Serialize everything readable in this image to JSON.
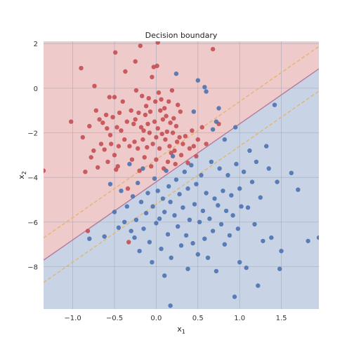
{
  "chart_data": {
    "type": "scatter",
    "title": "Decision boundary",
    "xlabel": "x",
    "xlabel_sub": "1",
    "ylabel": "x",
    "ylabel_sub": "2",
    "xlim": [
      -1.35,
      1.95
    ],
    "ylim": [
      -9.9,
      2.1
    ],
    "grid": true,
    "x_ticks": [
      -1.0,
      -0.5,
      0.0,
      0.5,
      1.0,
      1.5
    ],
    "x_tick_labels": [
      "−1.0",
      "−0.5",
      "0.0",
      "0.5",
      "1.0",
      "1.5"
    ],
    "y_ticks": [
      2,
      0,
      -2,
      -4,
      -6,
      -8
    ],
    "y_tick_labels": [
      "2",
      "0",
      "−2",
      "−4",
      "−6",
      "−8"
    ],
    "boundary": {
      "slope": 2.6,
      "intercept": -4.2,
      "margin": 1.0
    },
    "region_colors": {
      "upper": "#efcacb",
      "lower": "#c8d4e6"
    },
    "boundary_color": "#b47a9b",
    "margin_color": "#e3b56c",
    "series": [
      {
        "color": "#c44e52",
        "points": [
          [
            -1.35,
            -3.7
          ],
          [
            -1.02,
            -1.5
          ],
          [
            -0.9,
            0.9
          ],
          [
            -0.88,
            -2.2
          ],
          [
            -0.85,
            -3.75
          ],
          [
            -0.82,
            -6.4
          ],
          [
            -0.8,
            -1.7
          ],
          [
            -0.78,
            -3.1
          ],
          [
            -0.75,
            -2.8
          ],
          [
            -0.74,
            0.1
          ],
          [
            -0.72,
            -1.0
          ],
          [
            -0.7,
            -3.55
          ],
          [
            -0.68,
            -1.4
          ],
          [
            -0.66,
            -2.5
          ],
          [
            -0.64,
            -1.55
          ],
          [
            -0.62,
            -2.75
          ],
          [
            -0.6,
            -1.2
          ],
          [
            -0.59,
            -1.8
          ],
          [
            -0.58,
            -3.3
          ],
          [
            -0.56,
            -0.4
          ],
          [
            -0.55,
            -2.1
          ],
          [
            -0.54,
            -2.5
          ],
          [
            -0.52,
            -1.3
          ],
          [
            -0.5,
            -3.0
          ],
          [
            -0.5,
            -0.4
          ],
          [
            -0.49,
            1.6
          ],
          [
            -0.48,
            -3.65
          ],
          [
            -0.47,
            -1.75
          ],
          [
            -0.46,
            -3.5
          ],
          [
            -0.45,
            -2.6
          ],
          [
            -0.44,
            -1.1
          ],
          [
            -0.42,
            -1.9
          ],
          [
            -0.4,
            -0.6
          ],
          [
            -0.38,
            -2.3
          ],
          [
            -0.37,
            0.75
          ],
          [
            -0.35,
            -1.5
          ],
          [
            -0.34,
            -4.5
          ],
          [
            -0.33,
            -6.9
          ],
          [
            -0.32,
            -2.6
          ],
          [
            -0.3,
            -1.0
          ],
          [
            -0.29,
            -3.2
          ],
          [
            -0.27,
            -1.6
          ],
          [
            -0.26,
            -2.4
          ],
          [
            -0.25,
            -1.4
          ],
          [
            -0.24,
            -0.1
          ],
          [
            -0.22,
            -2.7
          ],
          [
            -0.21,
            -1.1
          ],
          [
            -0.2,
            -3.7
          ],
          [
            -0.19,
            1.9
          ],
          [
            -0.18,
            -1.75
          ],
          [
            -0.17,
            -0.35
          ],
          [
            -0.16,
            -2.3
          ],
          [
            -0.15,
            -1.9
          ],
          [
            -0.14,
            -3.1
          ],
          [
            -0.13,
            -1.2
          ],
          [
            -0.12,
            -0.8
          ],
          [
            -0.11,
            -2.65
          ],
          [
            -0.1,
            -1.6
          ],
          [
            -0.09,
            -0.45
          ],
          [
            -0.08,
            -2.0
          ],
          [
            -0.07,
            -1.05
          ],
          [
            -0.06,
            -3.5
          ],
          [
            -0.05,
            0.5
          ],
          [
            -0.04,
            -2.5
          ],
          [
            -0.03,
            0.95
          ],
          [
            -0.02,
            -1.5
          ],
          [
            -0.01,
            -0.6
          ],
          [
            0.0,
            -2.2
          ],
          [
            0.0,
            -3.2
          ],
          [
            0.01,
            1.0
          ],
          [
            0.02,
            -1.8
          ],
          [
            0.03,
            -0.2
          ],
          [
            0.04,
            -2.7
          ],
          [
            0.05,
            -1.0
          ],
          [
            0.06,
            -0.5
          ],
          [
            0.07,
            -2.05
          ],
          [
            0.08,
            -1.4
          ],
          [
            0.09,
            -3.6
          ],
          [
            0.1,
            -0.9
          ],
          [
            0.11,
            -2.3
          ],
          [
            0.12,
            -1.25
          ],
          [
            0.13,
            -1.95
          ],
          [
            0.14,
            -3.3
          ],
          [
            0.15,
            -0.6
          ],
          [
            0.16,
            -2.6
          ],
          [
            0.17,
            -1.55
          ],
          [
            0.18,
            -2.9
          ],
          [
            0.19,
            -0.1
          ],
          [
            0.2,
            -2.0
          ],
          [
            0.21,
            -1.35
          ],
          [
            0.22,
            -2.8
          ],
          [
            0.23,
            -3.4
          ],
          [
            0.24,
            -1.7
          ],
          [
            0.25,
            -2.4
          ],
          [
            0.26,
            -0.75
          ],
          [
            0.28,
            -2.2
          ],
          [
            0.29,
            -1.05
          ],
          [
            0.3,
            -3.0
          ],
          [
            0.32,
            -2.5
          ],
          [
            0.35,
            -2.15
          ],
          [
            0.38,
            -3.35
          ],
          [
            0.4,
            -2.7
          ],
          [
            0.43,
            -1.9
          ],
          [
            0.45,
            -2.6
          ],
          [
            0.48,
            -3.05
          ],
          [
            0.5,
            -2.3
          ],
          [
            0.55,
            -1.75
          ],
          [
            0.6,
            -2.5
          ],
          [
            0.68,
            1.75
          ],
          [
            0.75,
            -1.6
          ],
          [
            0.02,
            2.05
          ],
          [
            -0.25,
            1.2
          ]
        ]
      },
      {
        "color": "#4c72b0",
        "points": [
          [
            -0.8,
            -6.75
          ],
          [
            -0.62,
            -6.65
          ],
          [
            -0.55,
            -4.3
          ],
          [
            -0.5,
            -5.55
          ],
          [
            -0.45,
            -6.25
          ],
          [
            -0.42,
            -4.6
          ],
          [
            -0.38,
            -6.0
          ],
          [
            -0.35,
            -5.3
          ],
          [
            -0.32,
            -3.4
          ],
          [
            -0.3,
            -6.4
          ],
          [
            -0.28,
            -4.85
          ],
          [
            -0.26,
            -6.7
          ],
          [
            -0.24,
            -5.9
          ],
          [
            -0.22,
            -4.25
          ],
          [
            -0.2,
            -7.3
          ],
          [
            -0.18,
            -5.1
          ],
          [
            -0.16,
            -3.6
          ],
          [
            -0.15,
            -6.3
          ],
          [
            -0.12,
            -5.6
          ],
          [
            -0.1,
            -4.7
          ],
          [
            -0.08,
            -6.9
          ],
          [
            -0.05,
            -7.8
          ],
          [
            -0.04,
            -5.3
          ],
          [
            -0.02,
            -4.05
          ],
          [
            0.0,
            -6.05
          ],
          [
            0.02,
            -4.6
          ],
          [
            0.04,
            -5.85
          ],
          [
            0.06,
            -7.2
          ],
          [
            0.08,
            -4.95
          ],
          [
            0.1,
            -5.55
          ],
          [
            0.1,
            -8.4
          ],
          [
            0.12,
            -3.7
          ],
          [
            0.14,
            -6.55
          ],
          [
            0.15,
            -4.4
          ],
          [
            0.17,
            -5.1
          ],
          [
            0.17,
            -9.75
          ],
          [
            0.18,
            -7.6
          ],
          [
            0.2,
            -3.05
          ],
          [
            0.22,
            -5.7
          ],
          [
            0.24,
            -4.1
          ],
          [
            0.26,
            -6.2
          ],
          [
            0.28,
            -4.75
          ],
          [
            0.3,
            -7.05
          ],
          [
            0.32,
            -5.35
          ],
          [
            0.34,
            -3.75
          ],
          [
            0.36,
            -6.6
          ],
          [
            0.38,
            -4.5
          ],
          [
            0.38,
            -8.1
          ],
          [
            0.4,
            -5.9
          ],
          [
            0.42,
            -3.45
          ],
          [
            0.44,
            -6.95
          ],
          [
            0.46,
            -5.2
          ],
          [
            0.48,
            -4.3
          ],
          [
            0.5,
            -7.45
          ],
          [
            0.52,
            -6.0
          ],
          [
            0.54,
            -3.9
          ],
          [
            0.56,
            -5.5
          ],
          [
            0.58,
            -6.75
          ],
          [
            0.6,
            -4.7
          ],
          [
            0.62,
            -7.6
          ],
          [
            0.64,
            -5.85
          ],
          [
            0.66,
            -3.3
          ],
          [
            0.68,
            -6.4
          ],
          [
            0.7,
            -4.95
          ],
          [
            0.72,
            -8.2
          ],
          [
            0.74,
            -5.25
          ],
          [
            0.76,
            -3.6
          ],
          [
            0.78,
            -6.1
          ],
          [
            0.8,
            -4.6
          ],
          [
            0.82,
            -7.0
          ],
          [
            0.84,
            -5.5
          ],
          [
            0.86,
            -3.9
          ],
          [
            0.88,
            -6.6
          ],
          [
            0.9,
            -4.8
          ],
          [
            0.92,
            -5.7
          ],
          [
            0.94,
            -9.35
          ],
          [
            0.96,
            -3.4
          ],
          [
            0.98,
            -6.3
          ],
          [
            1.0,
            -4.5
          ],
          [
            1.0,
            -7.8
          ],
          [
            1.02,
            -5.3
          ],
          [
            1.05,
            -3.75
          ],
          [
            1.08,
            -8.05
          ],
          [
            1.1,
            -5.35
          ],
          [
            1.12,
            -2.8
          ],
          [
            1.15,
            -4.2
          ],
          [
            1.18,
            -6.1
          ],
          [
            1.2,
            -3.3
          ],
          [
            1.22,
            -8.85
          ],
          [
            1.25,
            -4.9
          ],
          [
            1.28,
            -6.85
          ],
          [
            1.32,
            -2.6
          ],
          [
            1.35,
            -3.6
          ],
          [
            1.38,
            -6.7
          ],
          [
            1.42,
            -0.75
          ],
          [
            1.45,
            -4.2
          ],
          [
            1.48,
            -8.1
          ],
          [
            1.5,
            -7.3
          ],
          [
            1.62,
            -3.8
          ],
          [
            1.7,
            -4.55
          ],
          [
            1.82,
            -6.85
          ],
          [
            1.95,
            -6.7
          ],
          [
            0.24,
            0.65
          ],
          [
            0.5,
            0.35
          ],
          [
            0.6,
            -0.15
          ],
          [
            0.75,
            -0.9
          ],
          [
            0.95,
            -1.75
          ],
          [
            0.72,
            -1.5
          ],
          [
            0.45,
            -1.05
          ],
          [
            0.58,
            0.05
          ],
          [
            0.68,
            -1.85
          ],
          [
            0.82,
            -2.3
          ]
        ]
      }
    ]
  }
}
